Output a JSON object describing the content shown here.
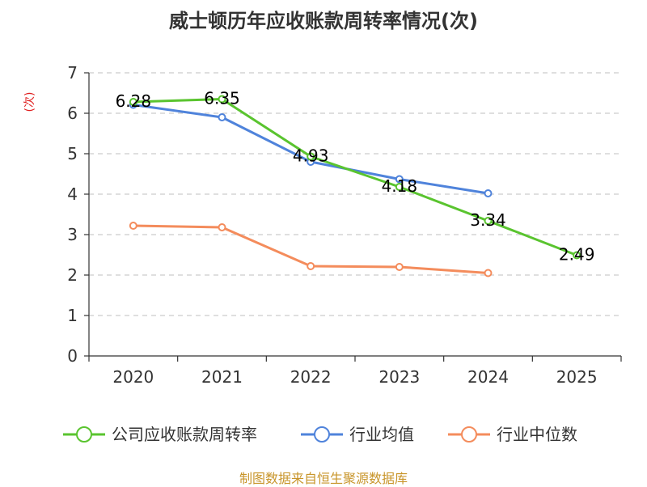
{
  "chart_data": {
    "type": "line",
    "title": "威士顿历年应收账款周转率情况(次)",
    "ylabel": "(次)",
    "xlabel": "",
    "categories": [
      "2020",
      "2021",
      "2022",
      "2023",
      "2024",
      "2025"
    ],
    "ylim": [
      0,
      7
    ],
    "yticks": [
      "0",
      "1",
      "2",
      "3",
      "4",
      "5",
      "6",
      "7"
    ],
    "grid": true,
    "legend_position": "bottom",
    "series": [
      {
        "name": "公司应收账款周转率",
        "color": "#5ac42f",
        "values": [
          6.28,
          6.35,
          4.93,
          4.18,
          3.34,
          2.49
        ],
        "labels": [
          "6.28",
          "6.35",
          "4.93",
          "4.18",
          "3.34",
          "2.49"
        ],
        "show_labels": true,
        "show_markers": true
      },
      {
        "name": "行业均值",
        "color": "#4f83db",
        "values": [
          6.21,
          5.9,
          4.8,
          4.37,
          4.02,
          null
        ],
        "show_labels": false,
        "show_markers": true
      },
      {
        "name": "行业中位数",
        "color": "#f48c5c",
        "values": [
          3.22,
          3.18,
          2.22,
          2.2,
          2.05,
          null
        ],
        "show_labels": false,
        "show_markers": true
      }
    ]
  },
  "colors": {
    "unit_label": "#e02020",
    "source_text": "#c8952a"
  },
  "source": "制图数据来自恒生聚源数据库"
}
